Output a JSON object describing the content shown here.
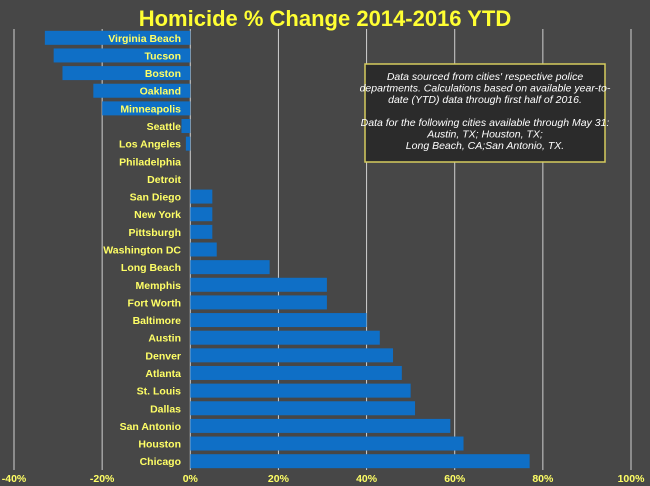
{
  "chart_data": {
    "type": "bar",
    "orientation": "horizontal",
    "title": "Homicide % Change 2014-2016 YTD",
    "xlabel": "",
    "ylabel": "",
    "xlim": [
      -40,
      100
    ],
    "x_ticks": [
      -40,
      -20,
      0,
      20,
      40,
      60,
      80,
      100
    ],
    "x_tick_labels": [
      "-40%",
      "-20%",
      "0%",
      "20%",
      "40%",
      "60%",
      "80%",
      "100%"
    ],
    "grid": true,
    "categories": [
      "Virginia Beach",
      "Tucson",
      "Boston",
      "Oakland",
      "Minneapolis",
      "Seattle",
      "Los Angeles",
      "Philadelphia",
      "Detroit",
      "San Diego",
      "New York",
      "Pittsburgh",
      "Washington DC",
      "Long Beach",
      "Memphis",
      "Fort Worth",
      "Baltimore",
      "Austin",
      "Denver",
      "Atlanta",
      "St. Louis",
      "Dallas",
      "San Antonio",
      "Houston",
      "Chicago"
    ],
    "values": [
      -33,
      -31,
      -29,
      -22,
      -20,
      -2,
      -1,
      0,
      0,
      5,
      5,
      5,
      6,
      18,
      31,
      31,
      40,
      43,
      46,
      48,
      50,
      51,
      59,
      62,
      77
    ],
    "bar_color": "#0f6fc6",
    "annotation": {
      "lines": [
        "Data sourced from cities' respective police",
        "departments. Calculations based on available year-to-",
        "date (YTD) data through first half of 2016.",
        "",
        "Data for the following cities available through May 31:",
        "Austin, TX; Houston, TX;",
        "Long Beach, CA;San Antonio, TX."
      ]
    }
  },
  "colors": {
    "background": "#474747",
    "gridline": "#d0d0d0",
    "label": "#ffff66",
    "title": "#ffff33",
    "note_box": "#2b2b2b",
    "note_border": "#d6cc5e"
  }
}
